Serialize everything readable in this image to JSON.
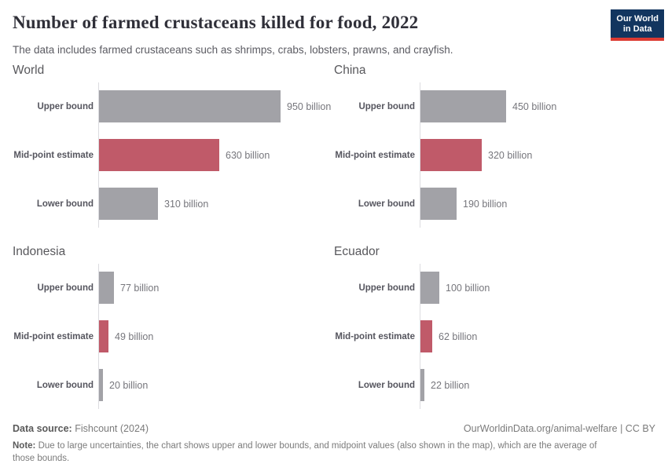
{
  "header": {
    "title": "Number of farmed crustaceans killed for food, 2022",
    "subtitle": "The data includes farmed crustaceans such as shrimps, crabs, lobsters, prawns, and crayfish.",
    "logo": {
      "line1": "Our World",
      "line2": "in Data"
    }
  },
  "chart_data": {
    "type": "bar",
    "orientation": "horizontal",
    "unit": "billion",
    "shared_scale": true,
    "xlim": [
      0,
      950
    ],
    "grid": false,
    "categories": [
      "Upper bound",
      "Mid-point estimate",
      "Lower bound"
    ],
    "colors": {
      "bound_bar": "#a2a2a7",
      "midpoint_bar": "#c05a69",
      "axis_line": "#dcdce0"
    },
    "panels": [
      {
        "title": "World",
        "bars": [
          {
            "category": "Upper bound",
            "value": 950,
            "label": "950 billion"
          },
          {
            "category": "Mid-point estimate",
            "value": 630,
            "label": "630 billion"
          },
          {
            "category": "Lower bound",
            "value": 310,
            "label": "310 billion"
          }
        ]
      },
      {
        "title": "China",
        "bars": [
          {
            "category": "Upper bound",
            "value": 450,
            "label": "450 billion"
          },
          {
            "category": "Mid-point estimate",
            "value": 320,
            "label": "320 billion"
          },
          {
            "category": "Lower bound",
            "value": 190,
            "label": "190 billion"
          }
        ]
      },
      {
        "title": "Indonesia",
        "bars": [
          {
            "category": "Upper bound",
            "value": 77,
            "label": "77 billion"
          },
          {
            "category": "Mid-point estimate",
            "value": 49,
            "label": "49 billion"
          },
          {
            "category": "Lower bound",
            "value": 20,
            "label": "20 billion"
          }
        ]
      },
      {
        "title": "Ecuador",
        "bars": [
          {
            "category": "Upper bound",
            "value": 100,
            "label": "100 billion"
          },
          {
            "category": "Mid-point estimate",
            "value": 62,
            "label": "62 billion"
          },
          {
            "category": "Lower bound",
            "value": 22,
            "label": "22 billion"
          }
        ]
      }
    ]
  },
  "footer": {
    "datasource_label": "Data source:",
    "datasource_value": " Fishcount (2024)",
    "link": "OurWorldinData.org/animal-welfare | CC BY",
    "note_label": "Note:",
    "note_text": " Due to large uncertainties, the chart shows upper and lower bounds, and midpoint values (also shown in the map), which are the average of those bounds."
  }
}
